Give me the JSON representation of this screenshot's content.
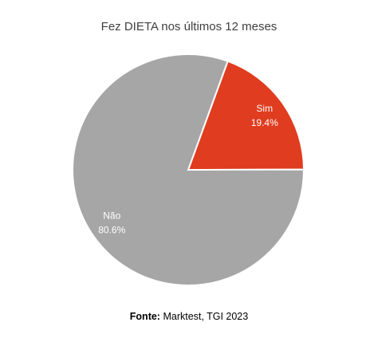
{
  "chart_data": {
    "type": "pie",
    "title": "Fez DIETA nos últimos 12 meses",
    "categories": [
      "Sim",
      "Não"
    ],
    "values": [
      19.4,
      80.6
    ],
    "value_labels": [
      "19.4%",
      "80.6%"
    ],
    "colors": [
      "#e03c1f",
      "#a6a6a6"
    ],
    "source": {
      "label": "Fonte:",
      "text": "Marktest, TGI 2023"
    }
  }
}
